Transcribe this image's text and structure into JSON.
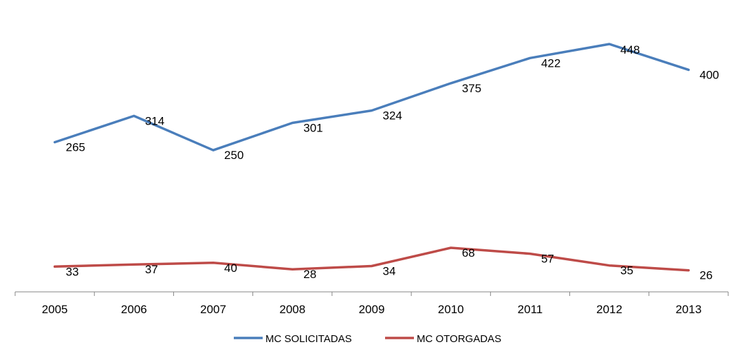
{
  "chart_data": {
    "type": "line",
    "title": "",
    "xlabel": "",
    "ylabel": "",
    "categories": [
      "2005",
      "2006",
      "2007",
      "2008",
      "2009",
      "2010",
      "2011",
      "2012",
      "2013"
    ],
    "ylim": [
      0,
      500
    ],
    "grid": false,
    "legend": "bottom",
    "series": [
      {
        "name": "MC SOLICITADAS",
        "color": "#4a7ebb",
        "values": [
          265,
          314,
          250,
          301,
          324,
          375,
          422,
          448,
          400
        ]
      },
      {
        "name": "MC OTORGADAS",
        "color": "#be4b48",
        "values": [
          33,
          37,
          40,
          28,
          34,
          68,
          57,
          35,
          26
        ]
      }
    ]
  }
}
